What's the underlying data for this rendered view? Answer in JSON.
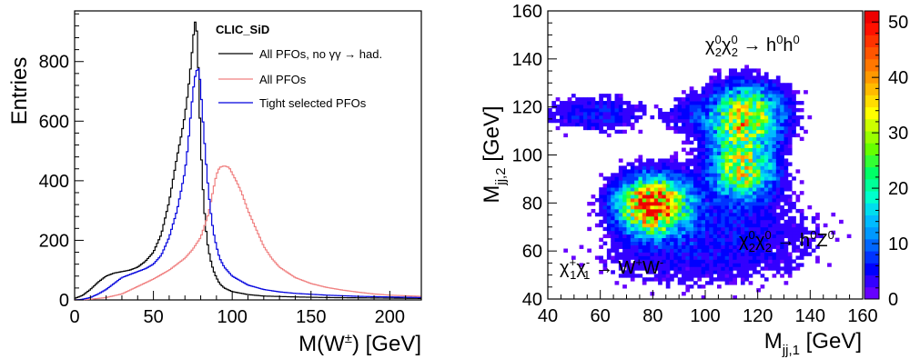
{
  "chart_data": [
    {
      "type": "line",
      "title": "",
      "xlabel": "M(W±) [GeV]",
      "ylabel": "Entries",
      "xlim": [
        0,
        220
      ],
      "ylim": [
        0,
        970
      ],
      "x_ticks": [
        0,
        50,
        100,
        150,
        200
      ],
      "y_ticks": [
        0,
        200,
        400,
        600,
        800
      ],
      "legend": {
        "placement": "top-right",
        "title": "CLIC_SiD",
        "entries": [
          {
            "label": "All PFOs, no γγ → had.",
            "color": "#000000"
          },
          {
            "label": "All PFOs",
            "color": "#f08080"
          },
          {
            "label": "Tight selected PFOs",
            "color": "#0000dd"
          }
        ]
      },
      "series": [
        {
          "name": "All PFOs, no γγ → had.",
          "color": "#000000",
          "x": [
            0,
            5,
            10,
            15,
            20,
            25,
            30,
            35,
            40,
            45,
            50,
            55,
            60,
            65,
            68,
            70,
            72,
            74,
            76,
            77,
            78,
            79,
            80,
            82,
            84,
            86,
            88,
            90,
            92,
            95,
            100,
            110,
            120,
            140,
            160,
            180,
            200,
            220
          ],
          "y": [
            5,
            15,
            35,
            60,
            80,
            90,
            95,
            100,
            110,
            130,
            160,
            220,
            330,
            480,
            560,
            620,
            700,
            800,
            920,
            945,
            860,
            700,
            520,
            320,
            200,
            140,
            100,
            75,
            55,
            40,
            28,
            18,
            13,
            10,
            8,
            7,
            6,
            5
          ]
        },
        {
          "name": "All PFOs",
          "color": "#f08080",
          "x": [
            0,
            10,
            20,
            30,
            40,
            50,
            60,
            70,
            75,
            80,
            85,
            88,
            90,
            92,
            95,
            98,
            100,
            103,
            106,
            110,
            115,
            120,
            125,
            130,
            140,
            150,
            160,
            170,
            180,
            190,
            200,
            220
          ],
          "y": [
            0,
            2,
            8,
            20,
            45,
            70,
            100,
            140,
            170,
            210,
            290,
            370,
            420,
            445,
            450,
            445,
            425,
            395,
            360,
            300,
            240,
            180,
            140,
            110,
            75,
            55,
            42,
            33,
            26,
            20,
            16,
            12
          ]
        },
        {
          "name": "Tight selected PFOs",
          "color": "#0000dd",
          "x": [
            0,
            5,
            10,
            15,
            20,
            25,
            30,
            35,
            40,
            45,
            50,
            55,
            60,
            65,
            70,
            72,
            74,
            76,
            78,
            79,
            80,
            82,
            84,
            86,
            88,
            90,
            92,
            95,
            100,
            110,
            120,
            130,
            140,
            160,
            180,
            200,
            220
          ],
          "y": [
            0,
            2,
            8,
            20,
            35,
            55,
            75,
            85,
            95,
            105,
            120,
            150,
            210,
            300,
            430,
            520,
            640,
            740,
            780,
            770,
            710,
            560,
            420,
            310,
            230,
            180,
            140,
            110,
            80,
            50,
            35,
            27,
            22,
            16,
            12,
            10,
            8
          ]
        }
      ]
    },
    {
      "type": "heatmap",
      "title": "",
      "xlabel": "Mjj,1 [GeV]",
      "ylabel": "Mjj,2 [GeV]",
      "xlim": [
        40,
        160
      ],
      "ylim": [
        40,
        160
      ],
      "x_ticks": [
        40,
        60,
        80,
        100,
        120,
        140,
        160
      ],
      "y_ticks": [
        40,
        60,
        80,
        100,
        120,
        140,
        160
      ],
      "colorbar": {
        "range": [
          0,
          52
        ],
        "ticks": [
          0,
          10,
          20,
          30,
          40,
          50
        ]
      },
      "clusters": [
        {
          "label": "χ₁⁺χ₁⁻ → W⁺W⁻",
          "cx": 79,
          "cy": 79,
          "peak": 50
        },
        {
          "label": "χ₂⁰χ₂⁰ → h⁰h⁰",
          "cx": 118,
          "cy": 118,
          "peak": 32
        },
        {
          "label": "χ₂⁰χ₂⁰ → h⁰Z⁰",
          "cx": 115,
          "cy": 92,
          "peak": 26
        }
      ]
    }
  ],
  "annotations": {
    "ww": {
      "base": "χ",
      "sup1": "+",
      "sub1": "1",
      "base2": "χ",
      "sup2": "-",
      "sub2": "1",
      "arrow": " → W",
      "sup3": "+",
      "w": "W",
      "sup4": "-"
    },
    "hh": {
      "base": "χ",
      "sup1": "0",
      "sub1": "2",
      "base2": "χ",
      "sup2": "0",
      "sub2": "2",
      "arrow": " → h",
      "sup3": "0",
      "w": "h",
      "sup4": "0"
    },
    "hz": {
      "base": "χ",
      "sup1": "0",
      "sub1": "2",
      "base2": "χ",
      "sup2": "0",
      "sub2": "2",
      "arrow": " → h",
      "sup3": "0",
      "w": "Z",
      "sup4": "0"
    }
  },
  "axis_titles": {
    "left_x_main": "M(W",
    "left_x_sup": "±",
    "left_x_unit": ") [GeV]",
    "left_y": "Entries",
    "right_x_main": "M",
    "right_x_sub": "jj,1",
    "right_x_unit": " [GeV]",
    "right_y_main": "M",
    "right_y_sub": "jj,2",
    "right_y_unit": " [GeV]"
  }
}
